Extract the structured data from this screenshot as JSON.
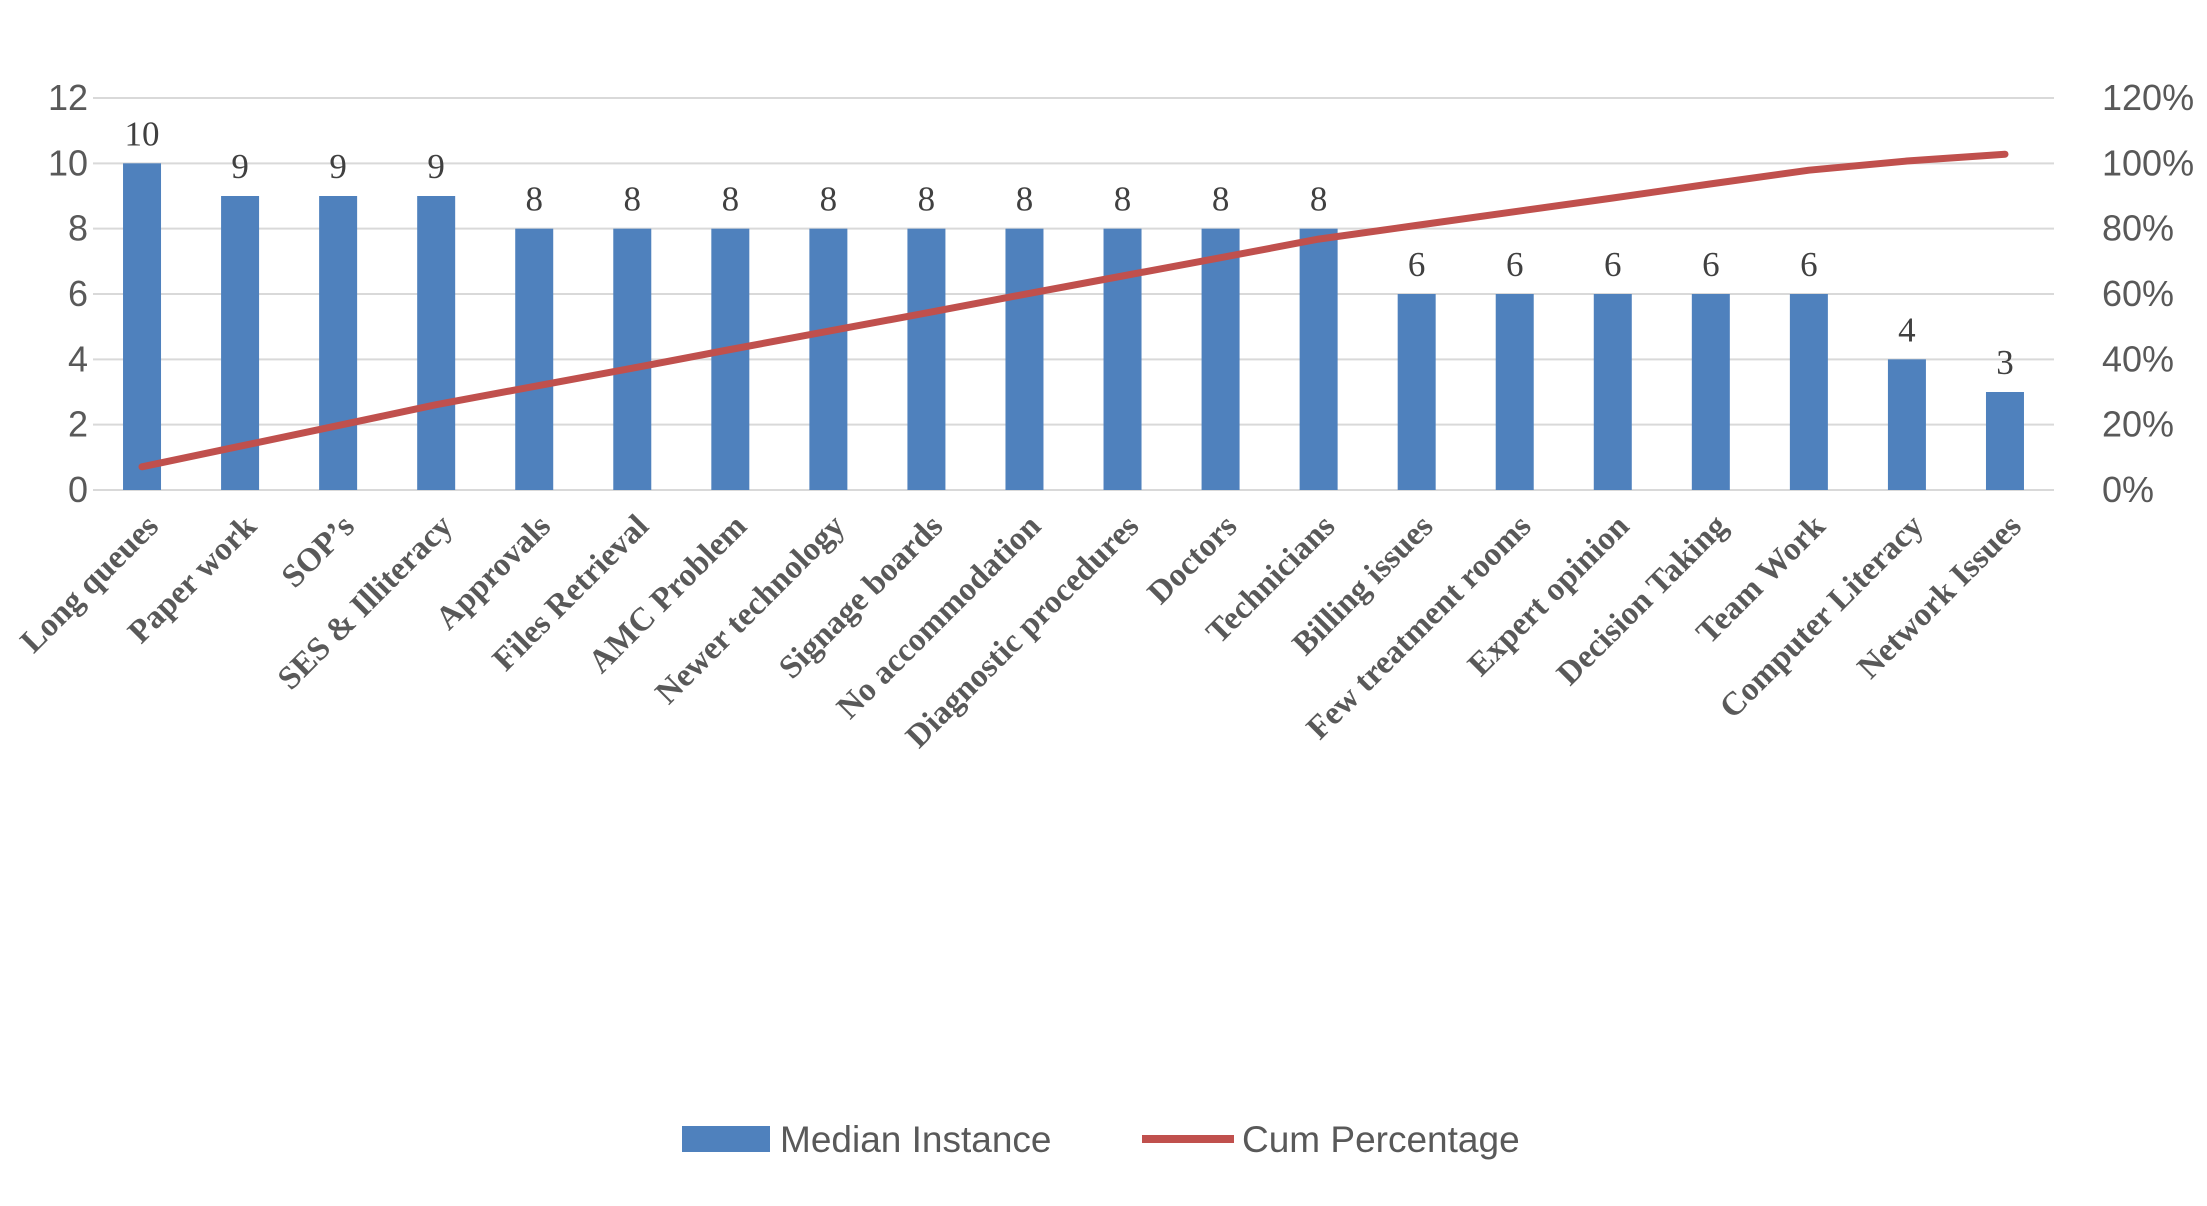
{
  "chart_data": {
    "type": "bar",
    "categories": [
      "Long queues",
      "Paper work",
      "SOP’s",
      "SES & Illiteracy",
      "Approvals",
      "Files Retrieval",
      "AMC Problem",
      "Newer technology",
      "Signage boards",
      "No accommodation",
      "Diagnostic procedures",
      "Doctors",
      "Technicians",
      "Billing issues",
      "Few treatment rooms",
      "Expert opinion",
      "Decision Taking",
      "Team Work",
      "Computer Literacy",
      "Network Issues"
    ],
    "series": [
      {
        "name": "Median Instance",
        "type": "bar",
        "axis": "left",
        "color": "#4f81bd",
        "values": [
          10,
          9,
          9,
          9,
          8,
          8,
          8,
          8,
          8,
          8,
          8,
          8,
          8,
          6,
          6,
          6,
          6,
          6,
          4,
          3
        ],
        "data_labels": [
          "10",
          "9",
          "9",
          "9",
          "8",
          "8",
          "8",
          "8",
          "8",
          "8",
          "8",
          "8",
          "8",
          "6",
          "6",
          "6",
          "6",
          "6",
          "4",
          "3"
        ]
      },
      {
        "name": "Cum Percentage",
        "type": "line",
        "axis": "right",
        "color": "#c0504d",
        "values": [
          7.1,
          13.4,
          19.7,
          26.1,
          31.7,
          37.3,
          43.0,
          48.6,
          54.2,
          59.9,
          65.5,
          71.1,
          76.8,
          81.0,
          85.2,
          89.4,
          93.7,
          97.9,
          100.7,
          102.8
        ]
      }
    ],
    "y_left": {
      "ylim": [
        0,
        12
      ],
      "ticks": [
        0,
        2,
        4,
        6,
        8,
        10,
        12
      ],
      "tick_labels": [
        "0",
        "2",
        "4",
        "6",
        "8",
        "10",
        "12"
      ]
    },
    "y_right": {
      "ylim": [
        0,
        120
      ],
      "ticks": [
        0,
        20,
        40,
        60,
        80,
        100,
        120
      ],
      "tick_labels": [
        "0%",
        "20%",
        "40%",
        "60%",
        "80%",
        "100%",
        "120%"
      ]
    },
    "title": "",
    "xlabel": "",
    "ylabel": "",
    "grid": true,
    "legend_position": "bottom",
    "legend": [
      {
        "label": "Median Instance",
        "symbol": "bar",
        "color": "#4f81bd"
      },
      {
        "label": "Cum Percentage",
        "symbol": "line",
        "color": "#c0504d"
      }
    ],
    "gridline_color": "#d9d9d9"
  }
}
